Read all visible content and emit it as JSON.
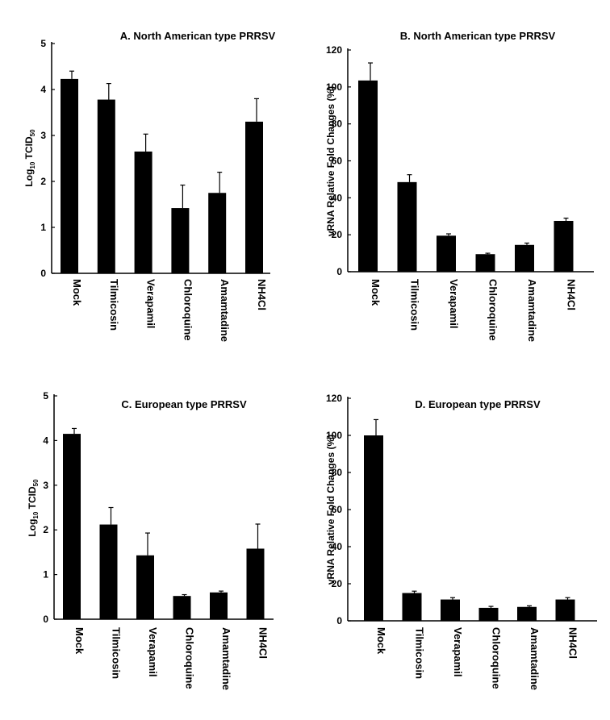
{
  "chart_data": [
    {
      "type": "bar",
      "title": "A. North American type PRRSV",
      "ylabel_main": "Log",
      "ylabel_sub": "10",
      "ylabel_rest": " TCID",
      "ylabel_sub2": "50",
      "categories": [
        "Mock",
        "Tilmicosin",
        "Verapamil",
        "Chloroquine",
        "Amamtadine",
        "NH4Cl"
      ],
      "values": [
        4.23,
        3.78,
        2.65,
        1.42,
        1.75,
        3.3
      ],
      "errors": [
        0.17,
        0.35,
        0.38,
        0.5,
        0.45,
        0.5
      ],
      "yticks": [
        0,
        1,
        2,
        3,
        4,
        5
      ],
      "ylim": [
        0,
        5
      ],
      "bar_color": "#000000"
    },
    {
      "type": "bar",
      "title": "B. North American type PRRSV",
      "ylabel": "vRNA Relative Fold Changes (%)",
      "categories": [
        "Mock",
        "Tilmicosin",
        "Verapamil",
        "Chloroquine",
        "Amamtadine",
        "NH4Cl"
      ],
      "values": [
        103.5,
        48.5,
        19.5,
        9.5,
        14.5,
        27.5
      ],
      "errors": [
        9.5,
        4,
        1,
        0.5,
        1,
        1.5
      ],
      "yticks": [
        0,
        20,
        40,
        60,
        80,
        100,
        120
      ],
      "ylim": [
        0,
        120
      ],
      "bar_color": "#000000"
    },
    {
      "type": "bar",
      "title": "C. European type PRRSV",
      "ylabel_main": "Log",
      "ylabel_sub": "10",
      "ylabel_rest": " TCID",
      "ylabel_sub2": "50",
      "categories": [
        "Mock",
        "Tilmicosin",
        "Verapamil",
        "Chloroquine",
        "Amamtadine",
        "NH4Cl"
      ],
      "values": [
        4.15,
        2.12,
        1.43,
        0.52,
        0.6,
        1.58
      ],
      "errors": [
        0.12,
        0.38,
        0.5,
        0.03,
        0.03,
        0.55
      ],
      "yticks": [
        0,
        1,
        2,
        3,
        4,
        5
      ],
      "ylim": [
        0,
        5
      ],
      "bar_color": "#000000"
    },
    {
      "type": "bar",
      "title": "D. European type PRRSV",
      "ylabel": "vRNA Relative Fold Changes (%)",
      "categories": [
        "Mock",
        "Tilmicosin",
        "Verapamil",
        "Chloroquine",
        "Amamtadine",
        "NH4Cl"
      ],
      "values": [
        100,
        15,
        11.5,
        7,
        7.5,
        11.5
      ],
      "errors": [
        8.5,
        1,
        1,
        0.8,
        0.6,
        1
      ],
      "yticks": [
        0,
        20,
        40,
        60,
        80,
        100,
        120
      ],
      "ylim": [
        0,
        120
      ],
      "bar_color": "#000000"
    }
  ]
}
